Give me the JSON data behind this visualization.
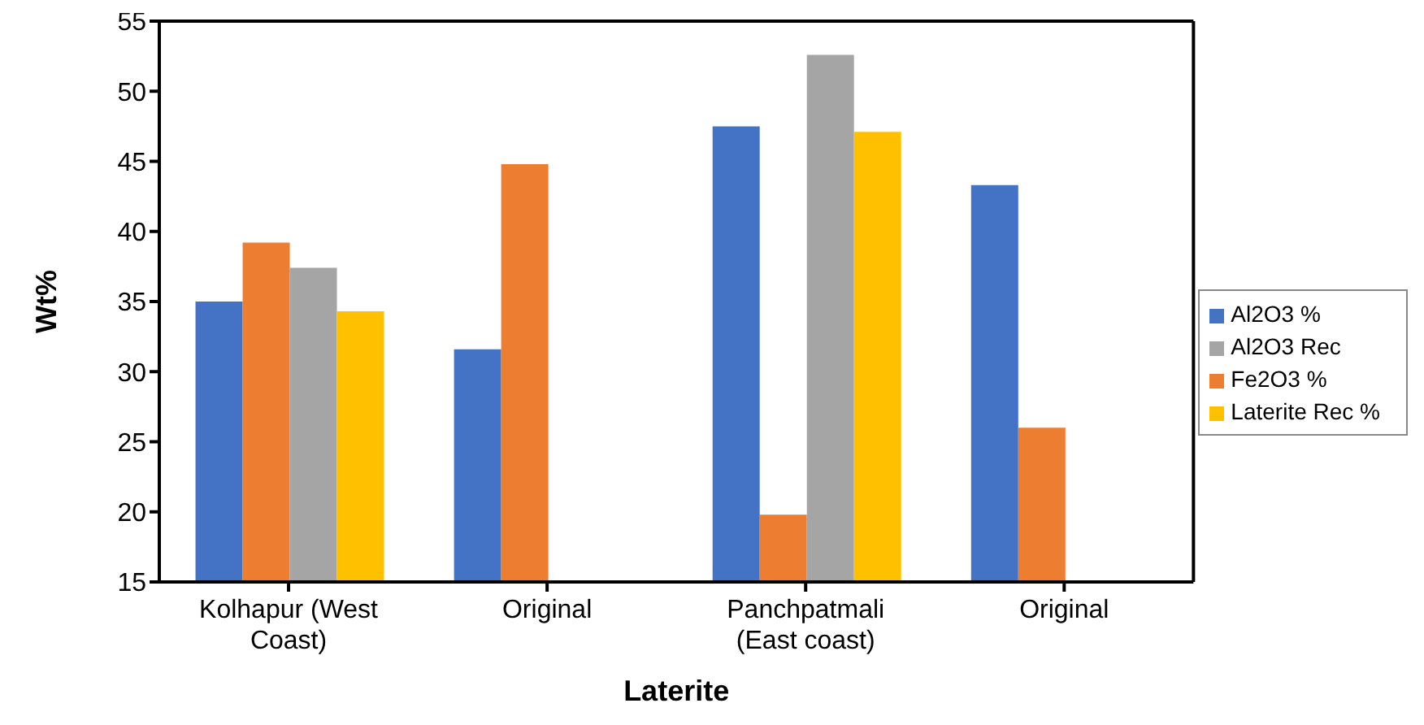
{
  "chart_data": {
    "type": "bar",
    "xlabel": "Laterite",
    "ylabel": "Wt%",
    "categories": [
      "Kolhapur (West Coast)",
      "Original",
      "Panchpatmali (East coast)",
      "Original"
    ],
    "series": [
      {
        "name": "Al2O3 %",
        "color": "#4472c4",
        "values": [
          35.0,
          31.6,
          47.5,
          43.3
        ]
      },
      {
        "name": "Fe2O3 %",
        "color": "#ed7d31",
        "values": [
          39.2,
          44.8,
          19.8,
          26.0
        ]
      },
      {
        "name": "Al2O3 Rec",
        "color": "#a5a5a5",
        "values": [
          37.4,
          null,
          52.6,
          null
        ]
      },
      {
        "name": "Laterite Rec %",
        "color": "#ffc000",
        "values": [
          34.3,
          null,
          47.1,
          null
        ]
      }
    ],
    "ylim": [
      15,
      55
    ],
    "yticks": [
      15,
      20,
      25,
      30,
      35,
      40,
      45,
      50,
      55
    ],
    "grid": false,
    "legend": "right"
  }
}
